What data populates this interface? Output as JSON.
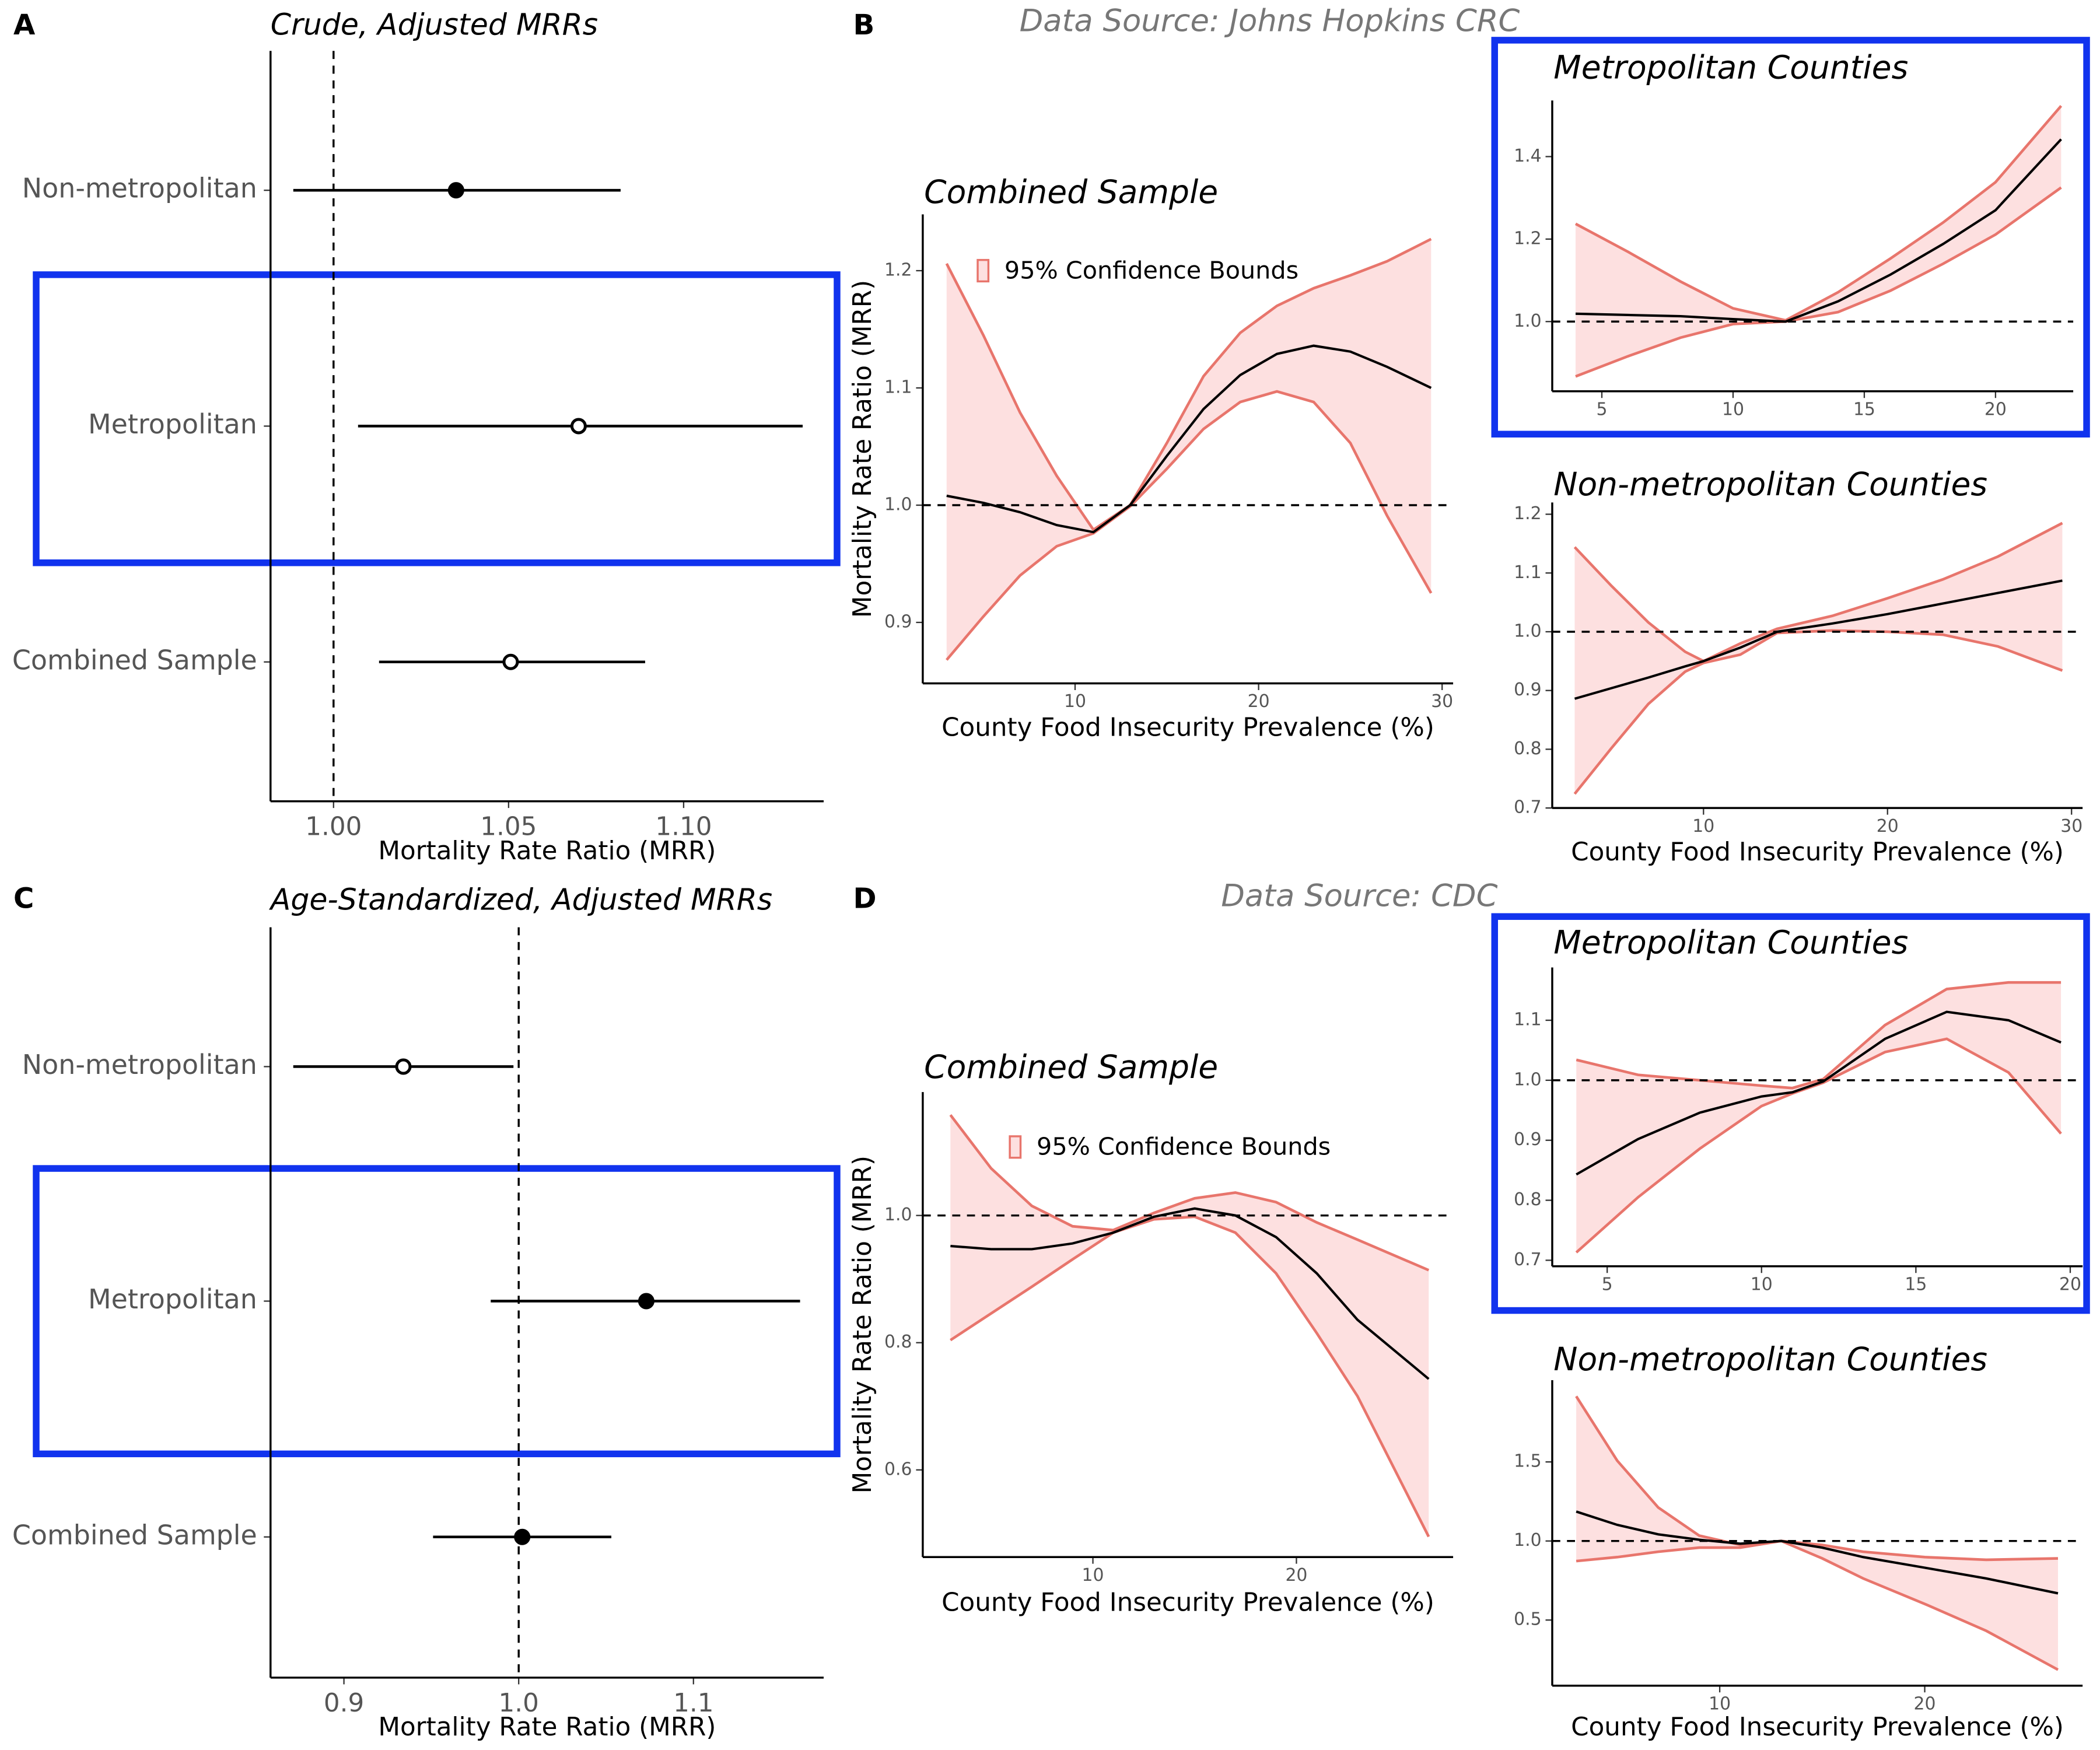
{
  "chart_data": [
    {
      "type": "forest",
      "panel_label": "A",
      "title": "Crude, Adjusted MRRs",
      "xlabel": "Mortality Rate Ratio (MRR)",
      "categories": [
        "Non-metropolitan",
        "Metropolitan",
        "Combined Sample"
      ],
      "values": [
        1.035,
        1.07,
        1.0506
      ],
      "lower": [
        0.9885,
        1.007,
        1.013
      ],
      "upper": [
        1.082,
        1.134,
        1.089
      ],
      "markers": [
        "filled",
        "open",
        "open"
      ],
      "color": "#000000",
      "xlim": [
        0.982,
        1.14
      ],
      "xticks": [
        {
          "value": 1,
          "label": "1.00"
        },
        {
          "value": 1.05,
          "label": "1.05"
        },
        {
          "value": 1.1,
          "label": "1.10"
        }
      ],
      "reference_line": 1,
      "highlight_color": "#1133ee"
    },
    {
      "type": "band",
      "panel_label": "B",
      "subtitle": "Data Source: Johns Hopkins CRC",
      "title": "Combined Sample",
      "xlabel": "County Food Insecurity Prevalence (%)",
      "ylabel": "Mortality Rate Ratio (MRR)",
      "x": [
        3,
        5,
        7,
        9,
        11,
        13,
        15,
        17,
        19,
        21,
        23,
        25,
        27,
        29.4
      ],
      "series": [
        {
          "name": "95% Confidence Bounds",
          "color": "#e8756c",
          "fill": "#fde0e0",
          "upper": [
            1.206,
            1.145,
            1.079,
            1.025,
            0.979,
            1.0,
            1.053,
            1.11,
            1.147,
            1.17,
            1.185,
            1.196,
            1.208,
            1.227
          ],
          "lower": [
            0.868,
            0.905,
            0.94,
            0.965,
            0.976,
            0.999,
            1.031,
            1.065,
            1.088,
            1.097,
            1.088,
            1.053,
            0.991,
            0.925
          ]
        },
        {
          "color": "#000000",
          "values": [
            1.008,
            1.002,
            0.994,
            0.983,
            0.977,
            1.0,
            1.042,
            1.082,
            1.111,
            1.129,
            1.136,
            1.131,
            1.118,
            1.1
          ]
        }
      ],
      "xlim": [
        1.7,
        30.6
      ],
      "ylim": [
        0.848,
        1.248
      ],
      "xticks": [
        10,
        20,
        30
      ],
      "yticks": [
        0.9,
        {
          "value": 1,
          "label": "1.0"
        },
        1.1,
        1.2
      ],
      "reference_line": 1
    },
    {
      "type": "band",
      "title": "Metropolitan Counties",
      "x": [
        4,
        6,
        8,
        10,
        12,
        14,
        16,
        18,
        20,
        22.5
      ],
      "series": [
        {
          "color": "#e8756c",
          "fill": "#fde0e0",
          "upper": [
            1.237,
            1.169,
            1.097,
            1.032,
            1.003,
            1.071,
            1.153,
            1.24,
            1.338,
            1.523
          ],
          "lower": [
            0.867,
            0.916,
            0.961,
            0.994,
            1.0,
            1.023,
            1.075,
            1.14,
            1.211,
            1.325
          ]
        },
        {
          "color": "#000000",
          "values": [
            1.019,
            1.016,
            1.013,
            1.006,
            1.0,
            1.049,
            1.114,
            1.188,
            1.27,
            1.442
          ]
        }
      ],
      "xlim": [
        3.11,
        22.96
      ],
      "ylim": [
        0.831,
        1.536
      ],
      "xticks": [
        5,
        10,
        15,
        20
      ],
      "yticks": [
        {
          "value": 1,
          "label": "1.0"
        },
        1.2,
        1.4
      ],
      "reference_line": 1,
      "highlight_color": "#1133ee"
    },
    {
      "type": "band",
      "title": "Non-metropolitan Counties",
      "xlabel": "County Food Insecurity Prevalence (%)",
      "x": [
        3,
        5,
        7,
        9,
        10,
        12,
        14,
        17,
        20,
        23,
        26,
        29.5
      ],
      "series": [
        {
          "color": "#e8756c",
          "fill": "#fde0e0",
          "upper": [
            1.144,
            1.078,
            1.016,
            0.966,
            0.95,
            0.98,
            1.005,
            1.027,
            1.057,
            1.089,
            1.128,
            1.185
          ],
          "lower": [
            0.724,
            0.802,
            0.877,
            0.932,
            0.947,
            0.961,
            0.998,
            1.002,
            1.0,
            0.995,
            0.975,
            0.934
          ]
        },
        {
          "color": "#000000",
          "values": [
            0.886,
            0.904,
            0.922,
            0.941,
            0.95,
            0.973,
            1.0,
            1.014,
            1.03,
            1.048,
            1.066,
            1.087
          ]
        }
      ],
      "xlim": [
        1.78,
        30.6
      ],
      "ylim": [
        0.7,
        1.22
      ],
      "xticks": [
        10,
        20,
        30
      ],
      "yticks": [
        0.7,
        0.8,
        0.9,
        {
          "value": 1,
          "label": "1.0"
        },
        1.1,
        1.2
      ],
      "reference_line": 1
    },
    {
      "type": "forest",
      "panel_label": "C",
      "title": "Age-Standardized, Adjusted MRRs",
      "xlabel": "Mortality Rate Ratio (MRR)",
      "categories": [
        "Non-metropolitan",
        "Metropolitan",
        "Combined Sample"
      ],
      "values": [
        0.934,
        1.073,
        1.002
      ],
      "lower": [
        0.871,
        0.984,
        0.951
      ],
      "upper": [
        0.997,
        1.161,
        1.053
      ],
      "markers": [
        "open",
        "filled",
        "filled"
      ],
      "color": "#000000",
      "xlim": [
        0.858,
        1.1745
      ],
      "xticks": [
        0.9,
        {
          "value": 1,
          "label": "1.0"
        },
        1.1
      ],
      "reference_line": 1,
      "highlight_color": "#1133ee"
    },
    {
      "type": "band",
      "panel_label": "D",
      "subtitle": "Data Source: CDC",
      "title": "Combined Sample",
      "xlabel": "County Food Insecurity Prevalence (%)",
      "ylabel": "Mortality Rate Ratio (MRR)",
      "x": [
        3,
        5,
        7,
        9,
        11,
        13,
        15,
        17,
        19,
        21,
        23,
        26.5
      ],
      "series": [
        {
          "name": "95% Confidence Bounds",
          "color": "#e8756c",
          "fill": "#fde0e0",
          "upper": [
            1.158,
            1.074,
            1.015,
            0.983,
            0.977,
            1.004,
            1.027,
            1.036,
            1.021,
            0.989,
            0.962,
            0.914
          ],
          "lower": [
            0.804,
            0.846,
            0.888,
            0.931,
            0.973,
            0.994,
            0.998,
            0.973,
            0.909,
            0.815,
            0.716,
            0.495
          ]
        },
        {
          "color": "#000000",
          "values": [
            0.952,
            0.947,
            0.947,
            0.956,
            0.973,
            0.998,
            1.011,
            1.0,
            0.966,
            0.909,
            0.836,
            0.743
          ]
        }
      ],
      "xlim": [
        1.64,
        27.7
      ],
      "ylim": [
        0.463,
        1.194
      ],
      "xticks": [
        10,
        20
      ],
      "yticks": [
        0.6,
        0.8,
        {
          "value": 1,
          "label": "1.0"
        }
      ],
      "reference_line": 1
    },
    {
      "type": "band",
      "title": "Metropolitan Counties",
      "x": [
        4,
        6,
        8,
        10,
        11,
        12,
        14,
        16,
        18,
        19.7
      ],
      "series": [
        {
          "color": "#e8756c",
          "fill": "#fde0e0",
          "upper": [
            1.034,
            1.009,
            1.0,
            0.991,
            0.987,
            1.002,
            1.092,
            1.152,
            1.163,
            1.163
          ],
          "lower": [
            0.713,
            0.805,
            0.886,
            0.957,
            0.978,
            0.996,
            1.047,
            1.069,
            1.013,
            0.911
          ]
        },
        {
          "color": "#000000",
          "values": [
            0.843,
            0.902,
            0.946,
            0.973,
            0.98,
            0.998,
            1.069,
            1.114,
            1.1,
            1.063
          ]
        }
      ],
      "xlim": [
        3.22,
        20.4
      ],
      "ylim": [
        0.69,
        1.188
      ],
      "xticks": [
        5,
        10,
        15,
        20
      ],
      "yticks": [
        0.7,
        0.8,
        0.9,
        {
          "value": 1,
          "label": "1.0"
        },
        1.1
      ],
      "reference_line": 1,
      "highlight_color": "#1133ee"
    },
    {
      "type": "band",
      "title": "Non-metropolitan Counties",
      "xlabel": "County Food Insecurity Prevalence (%)",
      "x": [
        3,
        5,
        7,
        9,
        11,
        13,
        15,
        17,
        20,
        23,
        26.5
      ],
      "series": [
        {
          "color": "#e8756c",
          "fill": "#fde0e0",
          "upper": [
            1.915,
            1.508,
            1.212,
            1.034,
            0.975,
            1.0,
            0.975,
            0.932,
            0.898,
            0.881,
            0.89
          ],
          "lower": [
            0.873,
            0.898,
            0.932,
            0.958,
            0.958,
            1.0,
            0.89,
            0.763,
            0.602,
            0.432,
            0.186
          ]
        },
        {
          "color": "#000000",
          "values": [
            1.186,
            1.102,
            1.042,
            1.008,
            0.983,
            1.0,
            0.958,
            0.898,
            0.831,
            0.763,
            0.669
          ]
        }
      ],
      "xlim": [
        1.83,
        27.7
      ],
      "ylim": [
        0.085,
        2.017
      ],
      "xticks": [
        10,
        20
      ],
      "yticks": [
        0.5,
        {
          "value": 1,
          "label": "1.0"
        },
        1.5
      ],
      "reference_line": 1
    }
  ]
}
